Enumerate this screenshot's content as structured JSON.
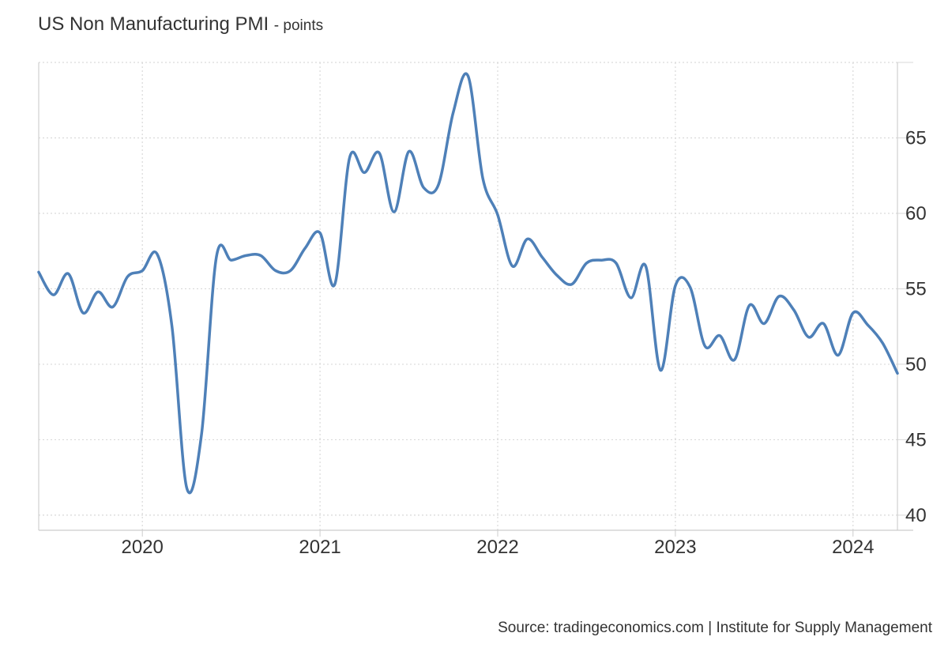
{
  "chart_data": {
    "type": "line",
    "title": "US Non Manufacturing PMI",
    "unit": "points",
    "xlabel": "",
    "ylabel": "",
    "x": [
      "2019-06",
      "2019-07",
      "2019-08",
      "2019-09",
      "2019-10",
      "2019-11",
      "2019-12",
      "2020-01",
      "2020-02",
      "2020-03",
      "2020-04",
      "2020-05",
      "2020-06",
      "2020-07",
      "2020-08",
      "2020-09",
      "2020-10",
      "2020-11",
      "2020-12",
      "2021-01",
      "2021-02",
      "2021-03",
      "2021-04",
      "2021-05",
      "2021-06",
      "2021-07",
      "2021-08",
      "2021-09",
      "2021-10",
      "2021-11",
      "2021-12",
      "2022-01",
      "2022-02",
      "2022-03",
      "2022-04",
      "2022-05",
      "2022-06",
      "2022-07",
      "2022-08",
      "2022-09",
      "2022-10",
      "2022-11",
      "2022-12",
      "2023-01",
      "2023-02",
      "2023-03",
      "2023-04",
      "2023-05",
      "2023-06",
      "2023-07",
      "2023-08",
      "2023-09",
      "2023-10",
      "2023-11",
      "2023-12",
      "2024-01",
      "2024-02",
      "2024-03",
      "2024-04"
    ],
    "series": [
      {
        "values": [
          56.1,
          54.6,
          56.0,
          53.4,
          54.8,
          53.8,
          55.8,
          56.2,
          57.3,
          52.5,
          41.8,
          45.4,
          57.1,
          56.9,
          57.2,
          57.2,
          56.2,
          56.2,
          57.7,
          58.7,
          55.3,
          63.7,
          62.7,
          64.0,
          60.1,
          64.1,
          61.7,
          61.9,
          66.7,
          69.1,
          62.3,
          59.9,
          56.5,
          58.3,
          57.1,
          55.9,
          55.3,
          56.7,
          56.9,
          56.7,
          54.4,
          56.5,
          49.6,
          55.2,
          55.1,
          51.2,
          51.9,
          50.3,
          53.9,
          52.7,
          54.5,
          53.6,
          51.8,
          52.7,
          50.6,
          53.4,
          52.6,
          51.4,
          49.4
        ]
      }
    ],
    "x_ticks": [
      "2020",
      "2021",
      "2022",
      "2023",
      "2024"
    ],
    "y_ticks": [
      "40",
      "45",
      "50",
      "55",
      "60",
      "65"
    ],
    "ylim": [
      39,
      70
    ],
    "grid": true,
    "y_axis_side": "right",
    "line_color": "#4e80b8",
    "grid_color": "#d9d9d9"
  },
  "source": "Source: tradingeconomics.com | Institute for Supply Management"
}
